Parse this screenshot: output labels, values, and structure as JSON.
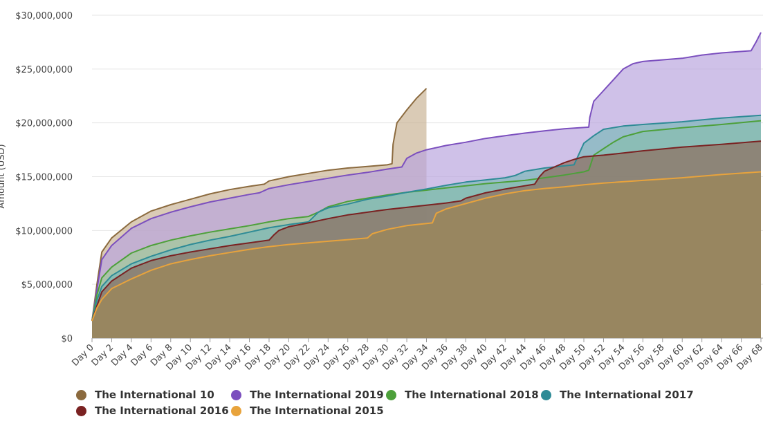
{
  "chart_data": {
    "type": "area",
    "title": "",
    "ylabel": "Amount (USD)",
    "ylim": [
      0,
      30000000
    ],
    "yticks": [
      0,
      5000000,
      10000000,
      15000000,
      20000000,
      25000000,
      30000000
    ],
    "ytick_labels": [
      "$0",
      "$5,000,000",
      "$10,000,000",
      "$15,000,000",
      "$20,000,000",
      "$25,000,000",
      "$30,000,000"
    ],
    "xlim": [
      0,
      68
    ],
    "xtick_labels": [
      "Day 0",
      "Day 2",
      "Day 4",
      "Day 6",
      "Day 8",
      "Day 10",
      "Day 12",
      "Day 14",
      "Day 16",
      "Day 18",
      "Day 20",
      "Day 22",
      "Day 24",
      "Day 26",
      "Day 28",
      "Day 30",
      "Day 32",
      "Day 34",
      "Day 36",
      "Day 38",
      "Day 40",
      "Day 42",
      "Day 44",
      "Day 46",
      "Day 48",
      "Day 50",
      "Day 52",
      "Day 54",
      "Day 56",
      "Day 58",
      "Day 60",
      "Day 62",
      "Day 64",
      "Day 66",
      "Day 68"
    ],
    "legend_position": "bottom",
    "grid": true,
    "series": [
      {
        "name": "The International 10",
        "color": "#8B6A3E",
        "fill": "#C9B394",
        "points": [
          [
            0,
            1600000
          ],
          [
            0.5,
            5000000
          ],
          [
            1,
            8000000
          ],
          [
            2,
            9300000
          ],
          [
            4,
            10800000
          ],
          [
            6,
            11800000
          ],
          [
            8,
            12400000
          ],
          [
            10,
            12900000
          ],
          [
            12,
            13400000
          ],
          [
            14,
            13800000
          ],
          [
            16,
            14100000
          ],
          [
            17.5,
            14300000
          ],
          [
            18,
            14600000
          ],
          [
            20,
            15000000
          ],
          [
            22,
            15300000
          ],
          [
            24,
            15600000
          ],
          [
            26,
            15800000
          ],
          [
            28,
            15950000
          ],
          [
            30,
            16100000
          ],
          [
            30.5,
            16200000
          ],
          [
            30.6,
            18000000
          ],
          [
            31,
            20000000
          ],
          [
            32,
            21200000
          ],
          [
            33,
            22300000
          ],
          [
            34,
            23200000
          ]
        ]
      },
      {
        "name": "The International 2019",
        "color": "#7B4FBE",
        "fill": "#B8A3DD",
        "points": [
          [
            0,
            1600000
          ],
          [
            0.5,
            4500000
          ],
          [
            1,
            7300000
          ],
          [
            2,
            8600000
          ],
          [
            4,
            10200000
          ],
          [
            6,
            11100000
          ],
          [
            8,
            11700000
          ],
          [
            10,
            12200000
          ],
          [
            12,
            12650000
          ],
          [
            14,
            13000000
          ],
          [
            16,
            13350000
          ],
          [
            17,
            13500000
          ],
          [
            18,
            13900000
          ],
          [
            20,
            14250000
          ],
          [
            22,
            14550000
          ],
          [
            24,
            14850000
          ],
          [
            26,
            15150000
          ],
          [
            28,
            15400000
          ],
          [
            30,
            15700000
          ],
          [
            31.5,
            15900000
          ],
          [
            32,
            16700000
          ],
          [
            33,
            17200000
          ],
          [
            34,
            17500000
          ],
          [
            36,
            17900000
          ],
          [
            38,
            18200000
          ],
          [
            40,
            18550000
          ],
          [
            42,
            18800000
          ],
          [
            44,
            19050000
          ],
          [
            46,
            19250000
          ],
          [
            48,
            19450000
          ],
          [
            50.5,
            19600000
          ],
          [
            50.6,
            20500000
          ],
          [
            51,
            22000000
          ],
          [
            52,
            23000000
          ],
          [
            53,
            24000000
          ],
          [
            54,
            25000000
          ],
          [
            55,
            25500000
          ],
          [
            56,
            25700000
          ],
          [
            60,
            26000000
          ],
          [
            62,
            26300000
          ],
          [
            64,
            26500000
          ],
          [
            67,
            26700000
          ],
          [
            67.5,
            27500000
          ],
          [
            68,
            28400000
          ]
        ]
      },
      {
        "name": "The International 2018",
        "color": "#4DA03A",
        "fill": "#9FCC97",
        "points": [
          [
            0,
            1600000
          ],
          [
            0.5,
            4000000
          ],
          [
            1,
            5600000
          ],
          [
            2,
            6600000
          ],
          [
            4,
            7900000
          ],
          [
            6,
            8600000
          ],
          [
            8,
            9100000
          ],
          [
            10,
            9500000
          ],
          [
            12,
            9850000
          ],
          [
            14,
            10150000
          ],
          [
            16,
            10450000
          ],
          [
            18,
            10800000
          ],
          [
            20,
            11100000
          ],
          [
            22,
            11300000
          ],
          [
            23,
            11700000
          ],
          [
            24,
            12200000
          ],
          [
            26,
            12700000
          ],
          [
            28,
            13000000
          ],
          [
            30,
            13300000
          ],
          [
            32,
            13550000
          ],
          [
            34,
            13750000
          ],
          [
            36,
            13950000
          ],
          [
            38,
            14150000
          ],
          [
            40,
            14350000
          ],
          [
            42,
            14500000
          ],
          [
            44,
            14650000
          ],
          [
            46,
            14900000
          ],
          [
            48,
            15150000
          ],
          [
            50,
            15450000
          ],
          [
            50.5,
            15600000
          ],
          [
            51,
            17000000
          ],
          [
            52,
            17600000
          ],
          [
            53,
            18200000
          ],
          [
            54,
            18700000
          ],
          [
            56,
            19200000
          ],
          [
            60,
            19550000
          ],
          [
            64,
            19850000
          ],
          [
            68,
            20200000
          ]
        ]
      },
      {
        "name": "The International 2017",
        "color": "#2E8B96",
        "fill": "#7AB8B8",
        "points": [
          [
            0,
            1600000
          ],
          [
            0.5,
            3500000
          ],
          [
            1,
            4800000
          ],
          [
            2,
            5800000
          ],
          [
            4,
            6900000
          ],
          [
            6,
            7600000
          ],
          [
            8,
            8200000
          ],
          [
            10,
            8700000
          ],
          [
            12,
            9100000
          ],
          [
            14,
            9450000
          ],
          [
            16,
            9850000
          ],
          [
            18,
            10250000
          ],
          [
            20,
            10550000
          ],
          [
            22,
            10800000
          ],
          [
            23,
            11700000
          ],
          [
            24,
            12100000
          ],
          [
            26,
            12450000
          ],
          [
            28,
            12900000
          ],
          [
            30,
            13200000
          ],
          [
            32,
            13550000
          ],
          [
            34,
            13850000
          ],
          [
            36,
            14200000
          ],
          [
            38,
            14500000
          ],
          [
            40,
            14700000
          ],
          [
            42,
            14900000
          ],
          [
            43,
            15100000
          ],
          [
            44,
            15500000
          ],
          [
            46,
            15800000
          ],
          [
            48,
            16000000
          ],
          [
            49,
            16100000
          ],
          [
            50,
            18100000
          ],
          [
            51,
            18800000
          ],
          [
            52,
            19400000
          ],
          [
            54,
            19700000
          ],
          [
            56,
            19850000
          ],
          [
            60,
            20100000
          ],
          [
            64,
            20450000
          ],
          [
            68,
            20700000
          ]
        ]
      },
      {
        "name": "The International 2016",
        "color": "#7A2222",
        "fill": "#8E6A5A",
        "points": [
          [
            0,
            1600000
          ],
          [
            0.5,
            3000000
          ],
          [
            1,
            4300000
          ],
          [
            2,
            5300000
          ],
          [
            4,
            6500000
          ],
          [
            6,
            7200000
          ],
          [
            8,
            7650000
          ],
          [
            10,
            8000000
          ],
          [
            12,
            8300000
          ],
          [
            14,
            8600000
          ],
          [
            16,
            8850000
          ],
          [
            18,
            9100000
          ],
          [
            18.5,
            9600000
          ],
          [
            19,
            10000000
          ],
          [
            20,
            10350000
          ],
          [
            22,
            10700000
          ],
          [
            24,
            11100000
          ],
          [
            26,
            11450000
          ],
          [
            28,
            11700000
          ],
          [
            30,
            11950000
          ],
          [
            32,
            12150000
          ],
          [
            34,
            12350000
          ],
          [
            36,
            12550000
          ],
          [
            37.5,
            12750000
          ],
          [
            38,
            13000000
          ],
          [
            40,
            13500000
          ],
          [
            42,
            13850000
          ],
          [
            44,
            14150000
          ],
          [
            45,
            14300000
          ],
          [
            45.5,
            15000000
          ],
          [
            46,
            15500000
          ],
          [
            47,
            15900000
          ],
          [
            48,
            16300000
          ],
          [
            49,
            16600000
          ],
          [
            50,
            16850000
          ],
          [
            52,
            17000000
          ],
          [
            56,
            17400000
          ],
          [
            60,
            17750000
          ],
          [
            64,
            18000000
          ],
          [
            68,
            18300000
          ]
        ]
      },
      {
        "name": "The International 2015",
        "color": "#E8A33C",
        "fill": "#988660",
        "points": [
          [
            0,
            1600000
          ],
          [
            0.5,
            2800000
          ],
          [
            1,
            3600000
          ],
          [
            2,
            4600000
          ],
          [
            4,
            5500000
          ],
          [
            6,
            6300000
          ],
          [
            8,
            6900000
          ],
          [
            10,
            7300000
          ],
          [
            12,
            7650000
          ],
          [
            14,
            7950000
          ],
          [
            16,
            8250000
          ],
          [
            18,
            8500000
          ],
          [
            20,
            8700000
          ],
          [
            22,
            8850000
          ],
          [
            24,
            9000000
          ],
          [
            26,
            9150000
          ],
          [
            28,
            9300000
          ],
          [
            28.5,
            9700000
          ],
          [
            30,
            10100000
          ],
          [
            32,
            10450000
          ],
          [
            34,
            10650000
          ],
          [
            34.6,
            10700000
          ],
          [
            35,
            11600000
          ],
          [
            36,
            12000000
          ],
          [
            38,
            12500000
          ],
          [
            40,
            13000000
          ],
          [
            42,
            13400000
          ],
          [
            44,
            13700000
          ],
          [
            46,
            13900000
          ],
          [
            48,
            14050000
          ],
          [
            50,
            14250000
          ],
          [
            52,
            14400000
          ],
          [
            56,
            14650000
          ],
          [
            60,
            14900000
          ],
          [
            64,
            15200000
          ],
          [
            68,
            15450000
          ]
        ]
      }
    ]
  }
}
